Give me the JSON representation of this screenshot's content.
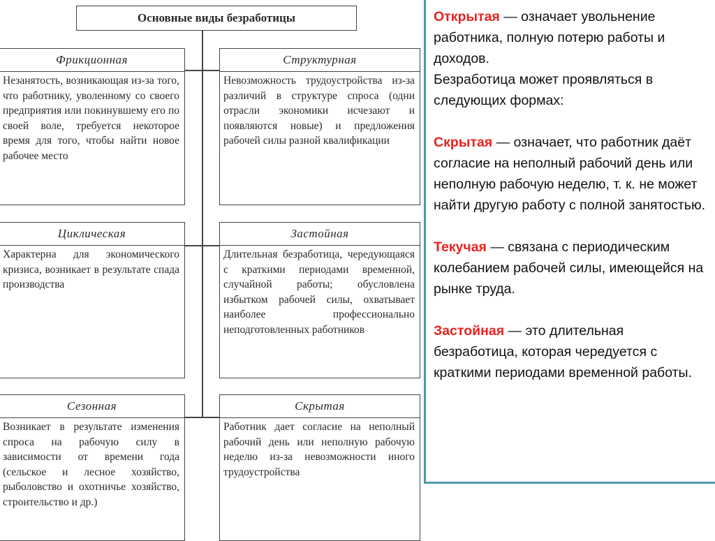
{
  "diagram": {
    "title": "Основные виды безработицы",
    "types": [
      {
        "name": "Фрикционная",
        "text": "Незанятость, возникающая из-за того, что работнику, уволенному со своего предприятия или покинувшему его по своей воле, требуется некоторое время для того, чтобы найти новое рабочее место"
      },
      {
        "name": "Структурная",
        "text": "Невозможность трудоустройства из-за различий в структуре спроса (одни отрасли экономики исчезают и появляются новые) и предложения рабочей силы разной квалификации"
      },
      {
        "name": "Циклическая",
        "text": "Характерна для экономического кризиса, возникает в результате спада производства"
      },
      {
        "name": "Застойная",
        "text": "Длительная безработица, чередующаяся с краткими периодами временной, случайной работы; обусловлена избытком рабочей силы, охватывает наиболее профессионально неподготовленных работников"
      },
      {
        "name": "Сезонная",
        "text": "Возникает в результате изменения спроса на рабочую силу в зависимости от времени года (сельское и лесное хозяйство, рыболовство и охотничье хозяйство, строительство и др.)"
      },
      {
        "name": "Скрытая",
        "text": "Работник дает согласие на неполный рабочий день или неполную рабочую неделю из-за невозможности иного трудоустройства"
      }
    ]
  },
  "panel": {
    "accent_color": "#e8231f",
    "border_color": "#4a9aab",
    "items": [
      {
        "term": "Открытая",
        "text": " — означает увольнение работника, полную потерю работы и доходов.",
        "extra": "Безработица может проявляться в следующих формах:"
      },
      {
        "term": "Скрытая",
        "text": " — означает, что работник даёт согласие на неполный рабочий день или неполную рабочую неделю, т. к. не может найти другую работу с полной занятостью."
      },
      {
        "term": "Текучая",
        "text": " — связана с периодическим колебанием рабочей силы, имеющейся на рынке труда."
      },
      {
        "term": "Застойная",
        "text": " — это длительная безработица, которая чередуется с краткими периодами временной работы."
      }
    ]
  }
}
